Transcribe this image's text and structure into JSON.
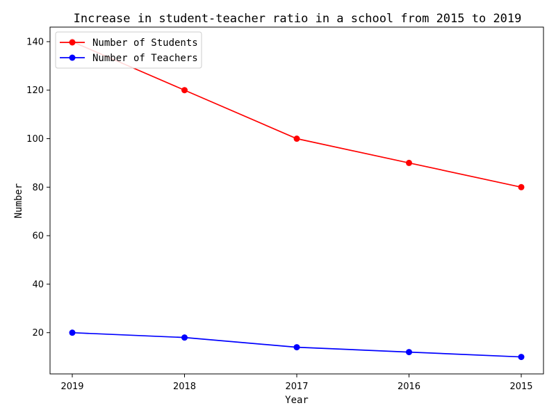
{
  "chart_data": {
    "type": "line",
    "title": "Increase in student-teacher ratio in a school from 2015 to 2019",
    "xlabel": "Year",
    "ylabel": "Number",
    "categories": [
      "2019",
      "2018",
      "2017",
      "2016",
      "2015"
    ],
    "y_ticks": [
      "20",
      "40",
      "60",
      "80",
      "100",
      "120",
      "140"
    ],
    "ylim": [
      3,
      146
    ],
    "grid": false,
    "legend_position": "top-left",
    "series": [
      {
        "name": "Number of Students",
        "color": "#ff0000",
        "marker": "circle",
        "values": [
          140,
          120,
          100,
          90,
          80
        ]
      },
      {
        "name": "Number of Teachers",
        "color": "#0000ff",
        "marker": "circle",
        "values": [
          20,
          18,
          14,
          12,
          10
        ]
      }
    ]
  }
}
